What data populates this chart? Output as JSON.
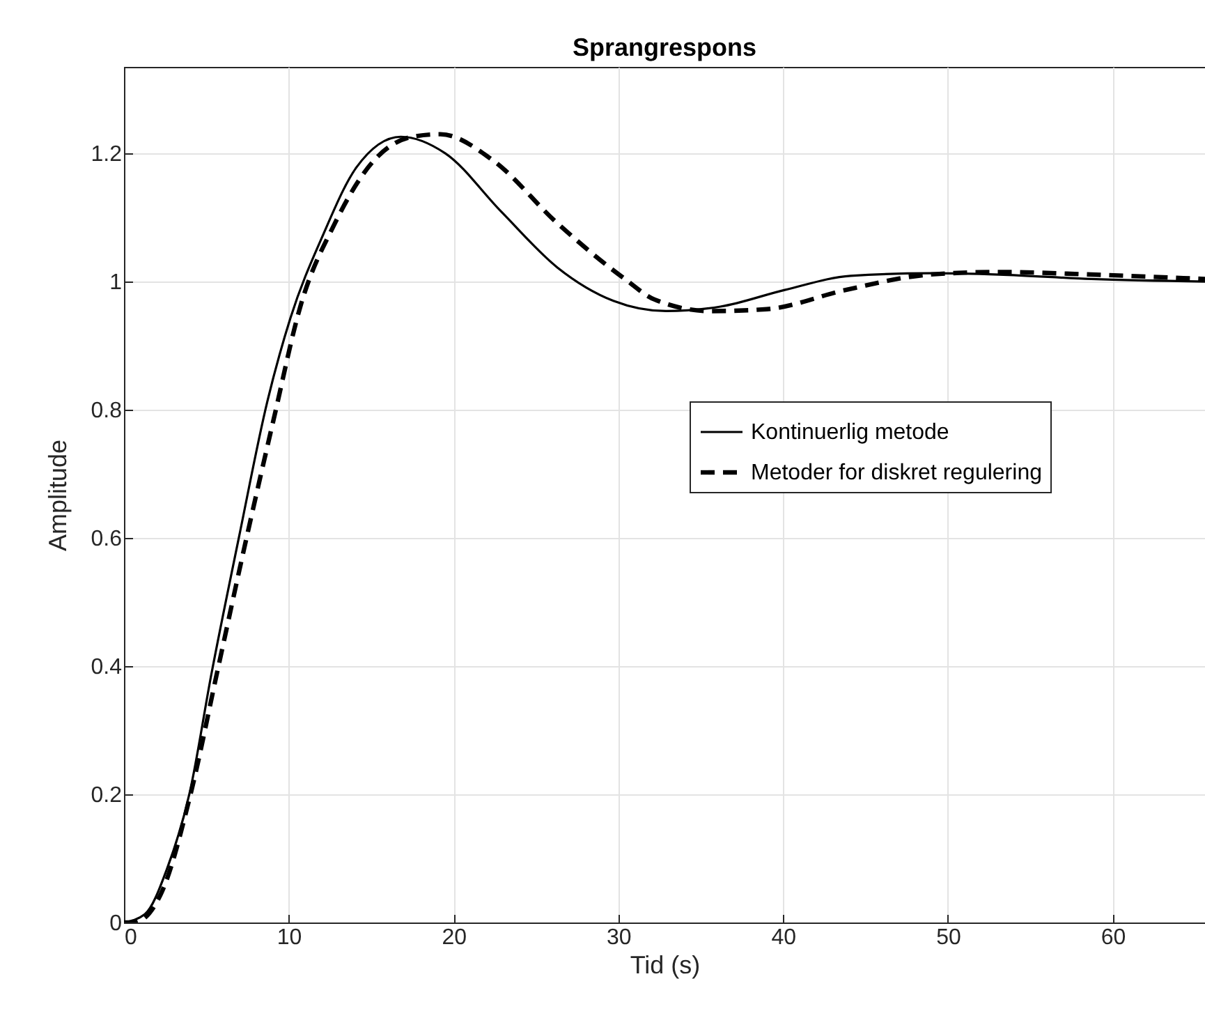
{
  "chart_data": {
    "type": "line",
    "title": "Sprangrespons",
    "xlabel": "Tid (s)",
    "ylabel": "Amplitude",
    "xlim": [
      0,
      65.6
    ],
    "xticks": [
      0,
      10,
      20,
      30,
      40,
      50,
      60
    ],
    "ylim": [
      0,
      1.335
    ],
    "yticks": [
      0,
      0.2,
      0.4,
      0.6,
      0.8,
      1,
      1.2
    ],
    "grid": true,
    "legend": "right",
    "series": [
      {
        "name": "Kontinuerlig metode",
        "color": "#000000",
        "line_style": "solid",
        "x": [
          0,
          1.27,
          2.6,
          4.0,
          5.3,
          7.0,
          8.7,
          10.1,
          12.1,
          14.1,
          16.8,
          19.5,
          22.9,
          26.3,
          29.7,
          32.9,
          36.2,
          40.1,
          44.1,
          48.9,
          53.1,
          58.7,
          65.6
        ],
        "values": [
          0,
          0.013,
          0.083,
          0.204,
          0.387,
          0.604,
          0.813,
          0.943,
          1.074,
          1.178,
          1.226,
          1.2,
          1.109,
          1.022,
          0.97,
          0.954,
          0.961,
          0.987,
          1.009,
          1.013,
          1.011,
          1.004,
          1.0
        ]
      },
      {
        "name": "Metoder for diskret regulering",
        "color": "#000000",
        "line_style": "dashed",
        "x": [
          0,
          0.6,
          2.3,
          4.0,
          5.7,
          7.4,
          9.1,
          10.7,
          12.8,
          15.1,
          17.5,
          19.2,
          22.3,
          26.3,
          30.4,
          32.2,
          35.6,
          39.0,
          43.8,
          48.9,
          53.1,
          58.7,
          65.6
        ],
        "values": [
          0,
          0,
          0.048,
          0.196,
          0.396,
          0.596,
          0.787,
          0.961,
          1.091,
          1.187,
          1.226,
          1.23,
          1.191,
          1.091,
          1.004,
          0.972,
          0.954,
          0.957,
          0.987,
          1.011,
          1.015,
          1.011,
          1.004
        ]
      }
    ]
  }
}
